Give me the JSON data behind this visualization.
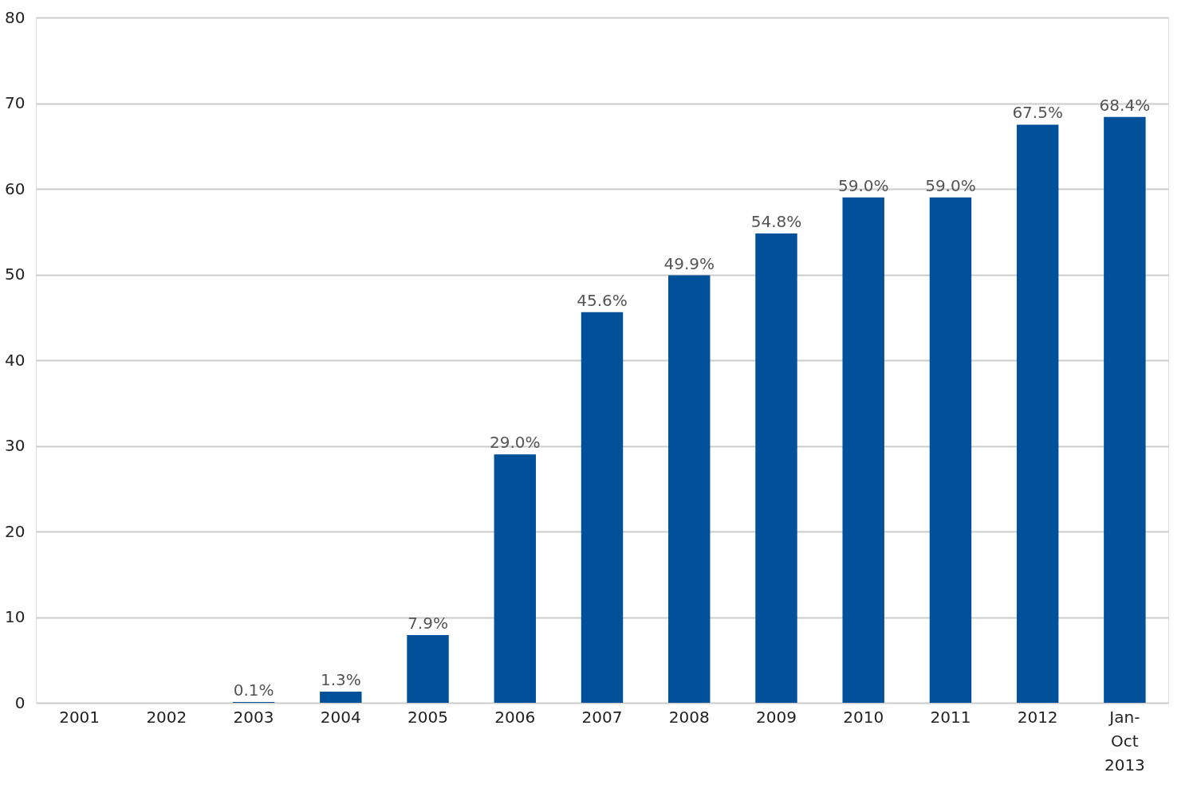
{
  "chart_data": {
    "type": "bar",
    "categories": [
      "2001",
      "2002",
      "2003",
      "2004",
      "2005",
      "2006",
      "2007",
      "2008",
      "2009",
      "2010",
      "2011",
      "2012",
      "Jan-\nOct\n2013"
    ],
    "values": [
      null,
      null,
      0.1,
      1.3,
      7.9,
      29.0,
      45.6,
      49.9,
      54.8,
      59.0,
      59.0,
      67.5,
      68.4
    ],
    "value_labels": [
      null,
      null,
      "0.1%",
      "1.3%",
      "7.9%",
      "29.0%",
      "45.6%",
      "49.9%",
      "54.8%",
      "59.0%",
      "59.0%",
      "67.5%",
      "68.4%"
    ],
    "color": "#00519a",
    "ylim": [
      0,
      80
    ],
    "yticks": [
      0,
      10,
      20,
      30,
      40,
      50,
      60,
      70,
      80
    ],
    "grid": "y"
  }
}
